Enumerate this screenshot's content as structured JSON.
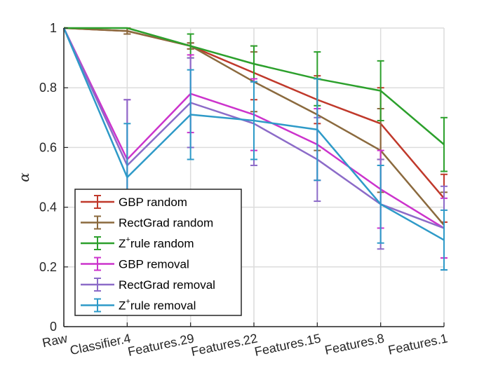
{
  "chart_data": {
    "type": "line",
    "title": "",
    "xlabel": "",
    "ylabel": "α",
    "categories": [
      "Raw",
      "Classifier.4",
      "Features.29",
      "Features.22",
      "Features.15",
      "Features.8",
      "Features.1"
    ],
    "ylim": [
      0,
      1
    ],
    "yticks": [
      0,
      0.2,
      0.4,
      0.6,
      0.8,
      1
    ],
    "ytick_labels": [
      "0",
      "0.2",
      "0.4",
      "0.6",
      "0.8",
      "1"
    ],
    "grid": true,
    "legend_position": "bottom-left",
    "series": [
      {
        "name": "GBP random",
        "label_main": "GBP random",
        "label_sup": "",
        "label_rest": "",
        "color": "#C0392B",
        "values": [
          1.0,
          0.99,
          0.94,
          0.85,
          0.76,
          0.68,
          0.43
        ],
        "errors": [
          0.0,
          0.01,
          0.01,
          0.09,
          0.08,
          0.12,
          0.08
        ]
      },
      {
        "name": "RectGrad random",
        "label_main": "RectGrad random",
        "label_sup": "",
        "label_rest": "",
        "color": "#8B6A3E",
        "values": [
          1.0,
          0.99,
          0.94,
          0.82,
          0.71,
          0.59,
          0.34
        ],
        "errors": [
          0.0,
          0.01,
          0.01,
          0.1,
          0.12,
          0.14,
          0.11
        ]
      },
      {
        "name": "Z+rule random",
        "label_main": "Z",
        "label_sup": "+",
        "label_rest": "rule random",
        "color": "#2CA02C",
        "values": [
          1.0,
          1.0,
          0.94,
          0.88,
          0.83,
          0.79,
          0.61
        ],
        "errors": [
          0.0,
          0.0,
          0.04,
          0.06,
          0.09,
          0.1,
          0.09
        ]
      },
      {
        "name": "GBP removal",
        "label_main": "GBP removal",
        "label_sup": "",
        "label_rest": "",
        "color": "#CC33CC",
        "values": [
          1.0,
          0.56,
          0.78,
          0.71,
          0.61,
          0.46,
          0.33
        ],
        "errors": [
          0.0,
          0.2,
          0.13,
          0.12,
          0.12,
          0.13,
          0.1
        ]
      },
      {
        "name": "RectGrad removal",
        "label_main": "RectGrad removal",
        "label_sup": "",
        "label_rest": "",
        "color": "#8C6BC8",
        "values": [
          1.0,
          0.54,
          0.75,
          0.68,
          0.56,
          0.41,
          0.33
        ],
        "errors": [
          0.0,
          0.22,
          0.15,
          0.14,
          0.14,
          0.15,
          0.14
        ]
      },
      {
        "name": "Z+rule removal",
        "label_main": "Z",
        "label_sup": "+",
        "label_rest": "rule removal",
        "color": "#2E9AC8",
        "values": [
          1.0,
          0.5,
          0.71,
          0.69,
          0.66,
          0.41,
          0.29
        ],
        "errors": [
          0.0,
          0.18,
          0.15,
          0.13,
          0.17,
          0.13,
          0.1
        ]
      }
    ]
  }
}
